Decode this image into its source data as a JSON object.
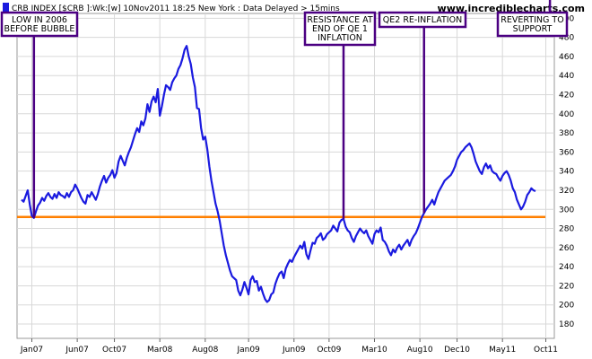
{
  "header": {
    "title": "CRB INDEX [$CRB ]:Wk:[w]  10Nov2011 18:25 New York   : Data Delayed > 15mins",
    "site": "www.incrediblecharts.com"
  },
  "chart_data": {
    "type": "line",
    "title": "CRB INDEX [$CRB ]:Wk:[w]",
    "xlabel": "",
    "ylabel": "",
    "ylim": [
      165,
      505
    ],
    "y_ticks": [
      180,
      200,
      220,
      240,
      260,
      280,
      300,
      320,
      340,
      360,
      380,
      400,
      420,
      440,
      460,
      480,
      500
    ],
    "x_ticks": [
      "Jan07",
      "Jun07",
      "Oct07",
      "Mar08",
      "Aug08",
      "Jan09",
      "Jun09",
      "Oct09",
      "Mar10",
      "Aug10",
      "Dec10",
      "May11",
      "Oct11"
    ],
    "x_tick_index": [
      5,
      27,
      45,
      67,
      89,
      110,
      132,
      149,
      171,
      193,
      211,
      233,
      254
    ],
    "support_level": 292,
    "colors": {
      "series": "#1a1adf",
      "support": "#ff7f00",
      "annotation": "#4b0082"
    },
    "series": [
      {
        "values": [
          310,
          308,
          314,
          320,
          305,
          293,
          291,
          298,
          304,
          307,
          312,
          309,
          314,
          317,
          313,
          311,
          316,
          312,
          318,
          315,
          314,
          312,
          317,
          313,
          318,
          320,
          326,
          322,
          317,
          312,
          308,
          306,
          315,
          313,
          318,
          314,
          310,
          316,
          324,
          330,
          335,
          328,
          333,
          336,
          341,
          333,
          338,
          350,
          356,
          351,
          346,
          354,
          360,
          365,
          372,
          379,
          385,
          381,
          392,
          388,
          395,
          410,
          402,
          413,
          418,
          412,
          426,
          398,
          408,
          420,
          430,
          428,
          425,
          433,
          437,
          440,
          447,
          451,
          458,
          467,
          471,
          460,
          452,
          438,
          428,
          406,
          405,
          385,
          373,
          376,
          363,
          345,
          330,
          318,
          306,
          298,
          288,
          275,
          262,
          252,
          244,
          236,
          230,
          228,
          226,
          215,
          210,
          216,
          224,
          218,
          211,
          226,
          230,
          224,
          225,
          215,
          219,
          212,
          206,
          203,
          205,
          211,
          213,
          222,
          228,
          233,
          235,
          228,
          238,
          243,
          247,
          245,
          250,
          254,
          258,
          262,
          259,
          266,
          253,
          248,
          257,
          265,
          264,
          270,
          272,
          275,
          268,
          270,
          274,
          276,
          278,
          283,
          280,
          277,
          286,
          289,
          290,
          282,
          278,
          276,
          270,
          266,
          272,
          276,
          280,
          277,
          275,
          278,
          272,
          268,
          264,
          274,
          278,
          276,
          281,
          268,
          266,
          262,
          256,
          252,
          258,
          255,
          260,
          263,
          258,
          262,
          265,
          268,
          262,
          268,
          272,
          275,
          280,
          286,
          292,
          296,
          300,
          303,
          306,
          310,
          305,
          312,
          318,
          322,
          326,
          330,
          332,
          334,
          336,
          340,
          345,
          352,
          356,
          360,
          362,
          365,
          367,
          369,
          365,
          358,
          350,
          345,
          340,
          337,
          344,
          348,
          343,
          346,
          340,
          338,
          337,
          333,
          330,
          335,
          338,
          340,
          336,
          330,
          322,
          318,
          310,
          305,
          300,
          303,
          308,
          315,
          318,
          322,
          320,
          319
        ]
      }
    ]
  },
  "annotations": [
    {
      "lines": [
        "LOW IN 2006",
        "BEFORE BUBBLE"
      ],
      "x_index": 6
    },
    {
      "lines": [
        "RESISTANCE AT",
        "END OF QE 1",
        "INFLATION"
      ],
      "x_index": 156
    },
    {
      "lines": [
        "QE2 RE-INFLATION"
      ],
      "x_index": 195
    },
    {
      "lines": [
        "REVERTING TO",
        "SUPPORT"
      ],
      "x_index": 256
    }
  ]
}
